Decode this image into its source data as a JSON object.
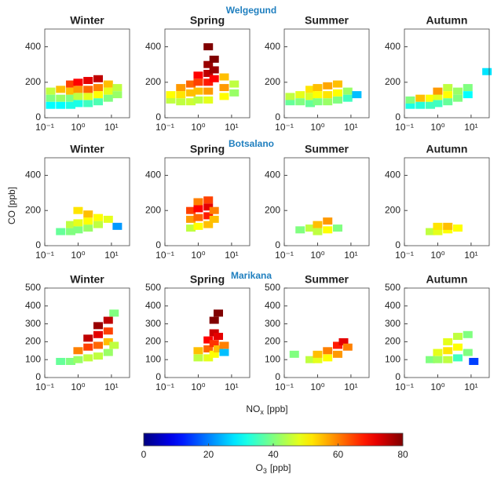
{
  "figure": {
    "sites": [
      "Welgegund",
      "Botsalano",
      "Marikana"
    ],
    "ylabel": "CO [ppb]",
    "xlabel": [
      "NO",
      "x",
      "[ppb]"
    ],
    "colorbar": {
      "label": [
        "O",
        "3",
        "[ppb]"
      ],
      "lim": [
        0,
        80
      ],
      "ticks": [
        0,
        20,
        40,
        60,
        80
      ],
      "colormap": "jet"
    }
  },
  "chart_data": [
    {
      "type": "heatmap",
      "title": "Winter",
      "log_x": true,
      "xlim": [
        0.1,
        35
      ],
      "ylim": [
        0,
        500
      ],
      "xticks": [
        {
          "value": 0.1,
          "label": "10⁻¹"
        },
        {
          "value": 1,
          "label": "10⁰"
        },
        {
          "value": 10,
          "label": "10¹"
        }
      ],
      "yticks": [
        0,
        200,
        400
      ],
      "x": [
        0.15,
        0.15,
        0.15,
        0.3,
        0.3,
        0.3,
        0.6,
        0.6,
        0.6,
        0.6,
        1,
        1,
        1,
        1,
        2,
        2,
        2,
        2,
        4,
        4,
        4,
        4,
        8,
        8,
        8,
        15,
        15
      ],
      "y": [
        70,
        110,
        150,
        70,
        110,
        160,
        70,
        110,
        150,
        190,
        80,
        120,
        160,
        200,
        80,
        120,
        160,
        210,
        90,
        130,
        170,
        220,
        110,
        150,
        190,
        130,
        170
      ],
      "values": [
        30,
        40,
        45,
        30,
        42,
        55,
        32,
        40,
        55,
        65,
        32,
        45,
        58,
        70,
        35,
        48,
        62,
        72,
        36,
        50,
        60,
        75,
        40,
        48,
        55,
        42,
        45
      ]
    },
    {
      "type": "heatmap",
      "title": "Spring",
      "log_x": true,
      "xlim": [
        0.1,
        35
      ],
      "ylim": [
        0,
        500
      ],
      "xticks": [
        {
          "value": 0.1,
          "label": "10⁻¹"
        },
        {
          "value": 1,
          "label": "10⁰"
        },
        {
          "value": 10,
          "label": "10¹"
        }
      ],
      "yticks": [
        0,
        200,
        400
      ],
      "x": [
        0.15,
        0.15,
        0.3,
        0.3,
        0.3,
        0.6,
        0.6,
        0.6,
        1,
        1,
        1,
        1,
        2,
        2,
        2,
        2,
        2,
        2,
        3,
        3,
        3,
        6,
        6,
        6,
        12,
        12
      ],
      "y": [
        100,
        130,
        90,
        130,
        170,
        90,
        140,
        190,
        100,
        150,
        200,
        240,
        100,
        150,
        200,
        250,
        300,
        400,
        220,
        270,
        330,
        120,
        170,
        230,
        140,
        190
      ],
      "values": [
        45,
        50,
        45,
        52,
        58,
        46,
        55,
        62,
        45,
        55,
        65,
        70,
        48,
        58,
        68,
        75,
        78,
        80,
        70,
        78,
        80,
        50,
        58,
        55,
        42,
        45
      ]
    },
    {
      "type": "heatmap",
      "title": "Summer",
      "log_x": true,
      "xlim": [
        0.1,
        35
      ],
      "ylim": [
        0,
        500
      ],
      "xticks": [
        {
          "value": 0.1,
          "label": "10⁻¹"
        },
        {
          "value": 1,
          "label": "10⁰"
        },
        {
          "value": 10,
          "label": "10¹"
        }
      ],
      "yticks": [
        0,
        200,
        400
      ],
      "x": [
        0.15,
        0.15,
        0.3,
        0.3,
        0.6,
        0.6,
        0.6,
        1,
        1,
        1,
        2,
        2,
        2,
        4,
        4,
        4,
        8,
        8,
        15
      ],
      "y": [
        90,
        120,
        90,
        130,
        80,
        120,
        160,
        90,
        130,
        170,
        90,
        130,
        180,
        100,
        140,
        190,
        110,
        150,
        130
      ],
      "values": [
        38,
        45,
        40,
        48,
        38,
        47,
        52,
        40,
        50,
        55,
        42,
        52,
        57,
        40,
        50,
        55,
        35,
        42,
        25
      ]
    },
    {
      "type": "heatmap",
      "title": "Autumn",
      "log_x": true,
      "xlim": [
        0.1,
        35
      ],
      "ylim": [
        0,
        500
      ],
      "xticks": [
        {
          "value": 0.1,
          "label": "10⁻¹"
        },
        {
          "value": 1,
          "label": "10⁰"
        },
        {
          "value": 10,
          "label": "10¹"
        }
      ],
      "yticks": [
        0,
        200,
        400
      ],
      "x": [
        0.15,
        0.15,
        0.3,
        0.3,
        0.6,
        0.6,
        1,
        1,
        1,
        2,
        2,
        2,
        4,
        4,
        8,
        8,
        30
      ],
      "y": [
        70,
        100,
        70,
        110,
        70,
        110,
        80,
        120,
        150,
        90,
        130,
        170,
        110,
        150,
        130,
        170,
        260
      ],
      "values": [
        32,
        40,
        33,
        55,
        35,
        50,
        35,
        48,
        58,
        38,
        50,
        45,
        40,
        42,
        30,
        40,
        28
      ]
    },
    {
      "type": "heatmap",
      "title": "Winter",
      "log_x": true,
      "xlim": [
        0.1,
        35
      ],
      "ylim": [
        0,
        500
      ],
      "xticks": [
        {
          "value": 0.1,
          "label": "10⁻¹"
        },
        {
          "value": 1,
          "label": "10⁰"
        },
        {
          "value": 10,
          "label": "10¹"
        }
      ],
      "yticks": [
        0,
        200,
        400
      ],
      "x": [
        0.3,
        0.6,
        0.6,
        1,
        1,
        1,
        2,
        2,
        2,
        4,
        4,
        8,
        15
      ],
      "y": [
        80,
        80,
        120,
        90,
        130,
        200,
        100,
        140,
        180,
        120,
        160,
        150,
        110
      ],
      "values": [
        38,
        40,
        45,
        40,
        48,
        52,
        42,
        50,
        55,
        45,
        50,
        48,
        22
      ]
    },
    {
      "type": "heatmap",
      "title": "Spring",
      "log_x": true,
      "xlim": [
        0.1,
        35
      ],
      "ylim": [
        0,
        500
      ],
      "xticks": [
        {
          "value": 0.1,
          "label": "10⁻¹"
        },
        {
          "value": 1,
          "label": "10⁰"
        },
        {
          "value": 10,
          "label": "10¹"
        }
      ],
      "yticks": [
        0,
        200,
        400
      ],
      "x": [
        0.6,
        0.6,
        0.6,
        1,
        1,
        1,
        1,
        2,
        2,
        2,
        2,
        3,
        3
      ],
      "y": [
        100,
        150,
        200,
        110,
        160,
        210,
        250,
        120,
        170,
        220,
        260,
        150,
        200
      ],
      "values": [
        45,
        58,
        65,
        50,
        62,
        70,
        60,
        55,
        68,
        72,
        65,
        55,
        60
      ]
    },
    {
      "type": "heatmap",
      "title": "Summer",
      "log_x": true,
      "xlim": [
        0.1,
        35
      ],
      "ylim": [
        0,
        500
      ],
      "xticks": [
        {
          "value": 0.1,
          "label": "10⁻¹"
        },
        {
          "value": 1,
          "label": "10⁰"
        },
        {
          "value": 10,
          "label": "10¹"
        }
      ],
      "yticks": [
        0,
        200,
        400
      ],
      "x": [
        0.3,
        0.6,
        1,
        1,
        2,
        2,
        4
      ],
      "y": [
        90,
        100,
        80,
        120,
        90,
        140,
        100
      ],
      "values": [
        40,
        45,
        45,
        55,
        50,
        58,
        40
      ]
    },
    {
      "type": "heatmap",
      "title": "Autumn",
      "log_x": true,
      "xlim": [
        0.1,
        35
      ],
      "ylim": [
        0,
        500
      ],
      "xticks": [
        {
          "value": 0.1,
          "label": "10⁻¹"
        },
        {
          "value": 1,
          "label": "10⁰"
        },
        {
          "value": 10,
          "label": "10¹"
        }
      ],
      "yticks": [
        0,
        200,
        400
      ],
      "x": [
        0.6,
        1,
        1,
        2,
        2,
        4
      ],
      "y": [
        80,
        80,
        110,
        90,
        110,
        100
      ],
      "values": [
        45,
        48,
        52,
        50,
        55,
        50
      ]
    },
    {
      "type": "heatmap",
      "title": "Winter",
      "log_x": true,
      "xlim": [
        0.1,
        35
      ],
      "ylim": [
        0,
        500
      ],
      "xticks": [
        {
          "value": 0.1,
          "label": "10⁻¹"
        },
        {
          "value": 1,
          "label": "10⁰"
        },
        {
          "value": 10,
          "label": "10¹"
        }
      ],
      "yticks": [
        0,
        100,
        200,
        300,
        400,
        500
      ],
      "x": [
        0.3,
        0.6,
        1,
        1,
        2,
        2,
        2,
        4,
        4,
        4,
        4,
        8,
        8,
        8,
        8,
        12,
        12
      ],
      "y": [
        90,
        90,
        100,
        150,
        110,
        170,
        220,
        120,
        180,
        240,
        290,
        140,
        200,
        260,
        320,
        180,
        360
      ],
      "values": [
        38,
        40,
        42,
        60,
        45,
        65,
        75,
        45,
        62,
        72,
        78,
        42,
        55,
        65,
        75,
        45,
        40
      ]
    },
    {
      "type": "heatmap",
      "title": "Spring",
      "log_x": true,
      "xlim": [
        0.1,
        35
      ],
      "ylim": [
        0,
        500
      ],
      "xticks": [
        {
          "value": 0.1,
          "label": "10⁻¹"
        },
        {
          "value": 1,
          "label": "10⁰"
        },
        {
          "value": 10,
          "label": "10¹"
        }
      ],
      "yticks": [
        0,
        100,
        200,
        300,
        400,
        500
      ],
      "x": [
        1,
        1,
        2,
        2,
        2,
        3,
        3,
        3,
        3,
        4,
        4,
        4,
        6,
        6
      ],
      "y": [
        110,
        150,
        110,
        160,
        210,
        130,
        190,
        250,
        320,
        160,
        230,
        360,
        180,
        140
      ],
      "values": [
        45,
        55,
        48,
        62,
        70,
        50,
        66,
        74,
        80,
        55,
        72,
        80,
        60,
        25
      ]
    },
    {
      "type": "heatmap",
      "title": "Summer",
      "log_x": true,
      "xlim": [
        0.1,
        35
      ],
      "ylim": [
        0,
        500
      ],
      "xticks": [
        {
          "value": 0.1,
          "label": "10⁻¹"
        },
        {
          "value": 1,
          "label": "10⁰"
        },
        {
          "value": 10,
          "label": "10¹"
        }
      ],
      "yticks": [
        0,
        100,
        200,
        300,
        400,
        500
      ],
      "x": [
        0.2,
        0.6,
        1,
        1,
        2,
        2,
        4,
        4,
        6,
        8
      ],
      "y": [
        130,
        100,
        100,
        130,
        110,
        150,
        130,
        180,
        200,
        170
      ],
      "values": [
        40,
        45,
        48,
        55,
        50,
        60,
        58,
        68,
        72,
        60
      ]
    },
    {
      "type": "heatmap",
      "title": "Autumn",
      "log_x": true,
      "xlim": [
        0.1,
        35
      ],
      "ylim": [
        0,
        500
      ],
      "xticks": [
        {
          "value": 0.1,
          "label": "10⁻¹"
        },
        {
          "value": 1,
          "label": "10⁰"
        },
        {
          "value": 10,
          "label": "10¹"
        }
      ],
      "yticks": [
        0,
        100,
        200,
        300,
        400,
        500
      ],
      "x": [
        0.6,
        1,
        1,
        2,
        2,
        2,
        4,
        4,
        4,
        8,
        8,
        12
      ],
      "y": [
        100,
        100,
        140,
        100,
        150,
        200,
        110,
        170,
        230,
        140,
        240,
        90
      ],
      "values": [
        40,
        42,
        48,
        45,
        52,
        48,
        35,
        50,
        45,
        40,
        40,
        15
      ]
    }
  ]
}
